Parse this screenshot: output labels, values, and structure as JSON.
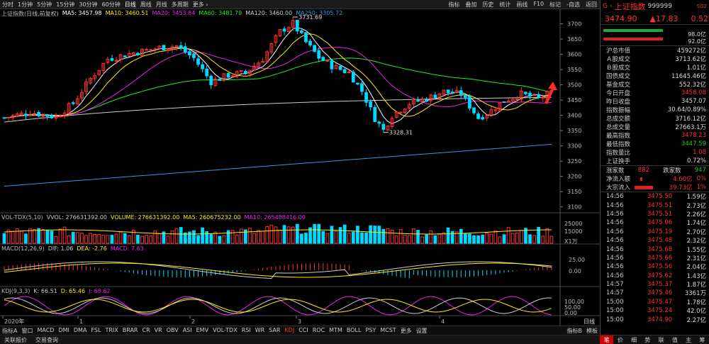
{
  "toolbar": {
    "periods": [
      "分时",
      "1分钟",
      "5分钟",
      "15分钟",
      "30分钟",
      "60分钟",
      "日线",
      "周线",
      "月线",
      "多周期",
      "更多 ›"
    ],
    "active_period": "日线",
    "right": [
      "指标",
      "叠加",
      "历史",
      "统计",
      "画线",
      "F10",
      "标记",
      "-自选",
      "返回"
    ]
  },
  "main_indicators": {
    "name": "上证指数(日线,前复权)",
    "items": [
      {
        "label": "MA5: 3457.98",
        "color": "#ffffff"
      },
      {
        "label": "MA10: 3460.51",
        "color": "#ffee00"
      },
      {
        "label": "MA20: 3453.84",
        "color": "#ee22ee"
      },
      {
        "label": "MA60: 3481.79",
        "color": "#22ee22"
      },
      {
        "label": "MA120: 3460.00",
        "color": "#cccccc"
      },
      {
        "label": "MA250: 3305.72",
        "color": "#3399dd"
      }
    ]
  },
  "vol_indicators": {
    "name": "VOL-TDX(5,10)",
    "items": [
      {
        "label": "VVOL: 276631392.00",
        "color": "#cccccc"
      },
      {
        "label": "VOLUME: 276631392.00",
        "color": "#ffee00"
      },
      {
        "label": "MA5: 260675232.00",
        "color": "#ffee00"
      },
      {
        "label": "MA10: 265488416.00",
        "color": "#ee22ee"
      }
    ]
  },
  "macd_indicators": {
    "name": "MACD(12,26,9)",
    "items": [
      {
        "label": "DIF: 1.06",
        "color": "#cccccc"
      },
      {
        "label": "DEA: -2.76",
        "color": "#ffee00"
      },
      {
        "label": "MACD: 7.63",
        "color": "#ee22ee"
      }
    ]
  },
  "kdj_indicators": {
    "name": "KDJ(9,3,3)",
    "items": [
      {
        "label": "K: 66.51",
        "color": "#cccccc"
      },
      {
        "label": "D: 65.46",
        "color": "#ffee00"
      },
      {
        "label": "J: 68.62",
        "color": "#ee22ee"
      }
    ]
  },
  "chart_data": {
    "type": "candlestick",
    "price_axis": [
      3700,
      3650,
      3600,
      3550,
      3500,
      3450,
      3400,
      3350,
      3300,
      3250,
      3200,
      3150,
      3100
    ],
    "ylim": [
      3090,
      3720
    ],
    "high_label": "3731.69",
    "low_label": "3328.31",
    "x_labels": [
      "2020年",
      "1",
      "2",
      "3",
      "4"
    ],
    "vol_axis": [
      "25000",
      "15000",
      "X1万"
    ],
    "macd_axis": [
      "25.00",
      "0.00"
    ],
    "kdj_axis": [
      "100.00",
      "50.00",
      "0.00"
    ],
    "period_label": "日线",
    "colors": {
      "up": "#ff3333",
      "down": "#00d8ff",
      "ma5": "#ffffff",
      "ma10": "#ffee00",
      "ma20": "#ee22ee",
      "ma60": "#22ee22",
      "ma120": "#cccccc",
      "ma250": "#3399dd"
    }
  },
  "bottom_tabs": [
    "指标A",
    "窗口",
    "MACD",
    "DMI",
    "DMA",
    "FSL",
    "TRIX",
    "BRAR",
    "CR",
    "VR",
    "OBV",
    "ASI",
    "EMV",
    "VOL-TDX",
    "RSI",
    "WR",
    "SAR",
    "KDJ",
    "CCI",
    "ROC",
    "MTM",
    "BOLL",
    "PSY",
    "MCST",
    "更多",
    "设置"
  ],
  "active_tab": "KDJ",
  "bottom_right": [
    "指标B",
    "模板"
  ],
  "status": [
    "关联报价",
    "交易查询"
  ],
  "quote": {
    "code_prefix": "G",
    "name": "上证指数",
    "code": "999999",
    "tag": "SG2",
    "price": "3474.90",
    "change": "▲17.83",
    "change_pct": "0.52%",
    "bar1_value": "98.0亿",
    "bar2_value": "92.0亿",
    "fields": [
      {
        "k": "沪总市值",
        "v": "459272亿",
        "c": ""
      },
      {
        "k": "Ａ股成交",
        "v": "3713.62亿",
        "c": ""
      },
      {
        "k": "Ｂ股成交",
        "v": "1.01亿",
        "c": ""
      },
      {
        "k": "国债成交",
        "v": "11645.46亿",
        "c": ""
      },
      {
        "k": "基金成交",
        "v": "552.32亿",
        "c": ""
      },
      {
        "k": "今日开盘",
        "v": "3458.08",
        "c": "red"
      },
      {
        "k": "昨日收盘",
        "v": "3457.07",
        "c": ""
      },
      {
        "k": "指数振幅",
        "v": "30.64/0.89%",
        "c": ""
      },
      {
        "k": "总成交额",
        "v": "3716.12亿",
        "c": ""
      },
      {
        "k": "总成交量",
        "v": "27663.1万",
        "c": ""
      },
      {
        "k": "最高指数",
        "v": "3478.23",
        "c": "red"
      },
      {
        "k": "最低指数",
        "v": "3447.59",
        "c": "green"
      },
      {
        "k": "指数量比",
        "v": "1.08",
        "c": "red"
      },
      {
        "k": "上证换手",
        "v": "0.72%",
        "c": ""
      }
    ],
    "up_label": "涨家数",
    "up_value": "882",
    "down_label": "跌家数",
    "down_value": "947",
    "inflow_label": "净流入额",
    "inflow_value": "4.60亿",
    "inflow_pct": "0%",
    "big_label": "大宗流入",
    "big_value": "39.73亿",
    "big_pct": "1%",
    "ticks": [
      {
        "t": "14:56",
        "p": "3475.50",
        "v": "1.59亿"
      },
      {
        "t": "14:56",
        "p": "3475.51",
        "v": "2.73亿"
      },
      {
        "t": "14:56",
        "p": "3475.51",
        "v": "2.26亿"
      },
      {
        "t": "14:56",
        "p": "3475.06",
        "v": "1.74亿"
      },
      {
        "t": "14:56",
        "p": "3475.19",
        "v": "2.70亿"
      },
      {
        "t": "14:56",
        "p": "3475.48",
        "v": "2.32亿"
      },
      {
        "t": "14:56",
        "p": "3475.68",
        "v": "1.55亿"
      },
      {
        "t": "14:56",
        "p": "3475.66",
        "v": "2.31亿"
      },
      {
        "t": "14:56",
        "p": "3475.56",
        "v": "2.04亿"
      },
      {
        "t": "14:56",
        "p": "3475.62",
        "v": "1.43亿"
      },
      {
        "t": "14:57",
        "p": "3475.37",
        "v": "1.87亿"
      },
      {
        "t": "14:57",
        "p": "3475.46",
        "v": "3361万"
      },
      {
        "t": "15:00",
        "p": "3475.47",
        "v": "1.78亿"
      },
      {
        "t": "15:00",
        "p": "3475.24",
        "v": "42.0亿"
      },
      {
        "t": "15:00",
        "p": "3474.90",
        "v": "2.27亿"
      }
    ],
    "bottom_tabs": [
      "笔",
      "价",
      "细",
      "势",
      "联",
      "值",
      "主",
      "筹"
    ]
  }
}
